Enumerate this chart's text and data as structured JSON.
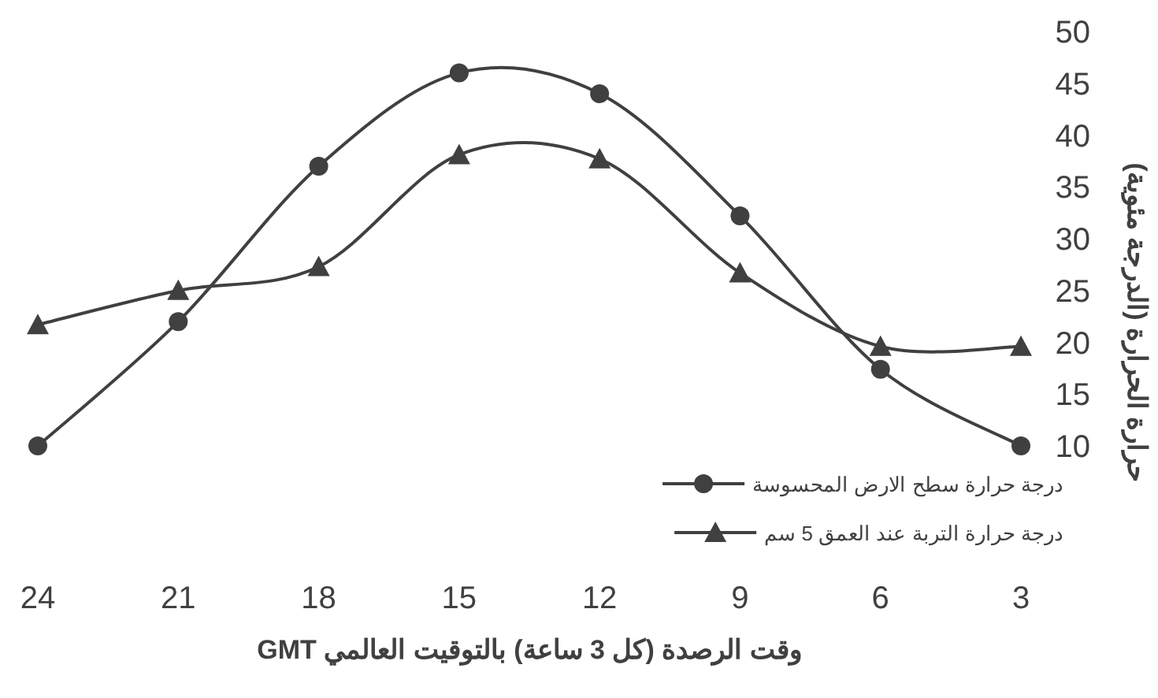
{
  "chart_data": {
    "type": "line",
    "categories": [
      "24",
      "21",
      "18",
      "15",
      "12",
      "9",
      "6",
      "3"
    ],
    "series": [
      {
        "name": "درجة حرارة سطح الارض المحسوسة",
        "color": "#404040",
        "marker": "circle",
        "values": [
          10,
          22,
          37,
          46,
          44,
          32.2,
          17.4,
          10
        ]
      },
      {
        "name": "درجة حرارة التربة عند العمق 5 سم",
        "color": "#404040",
        "marker": "triangle",
        "values": [
          21.7,
          25,
          27.3,
          38.1,
          37.7,
          26.7,
          19.6,
          19.6
        ]
      }
    ],
    "xlabel": "وقت الرصدة (كل 3 ساعة) بالتوقيت العالمي GMT",
    "ylabel": "حرارة الحرارة (الدرجة مئوية)",
    "ylim": [
      10,
      50
    ],
    "yticks": [
      10,
      15,
      20,
      25,
      30,
      35,
      40,
      45,
      50
    ],
    "legend": "bottom right",
    "grid": false,
    "line_style": "solid"
  }
}
